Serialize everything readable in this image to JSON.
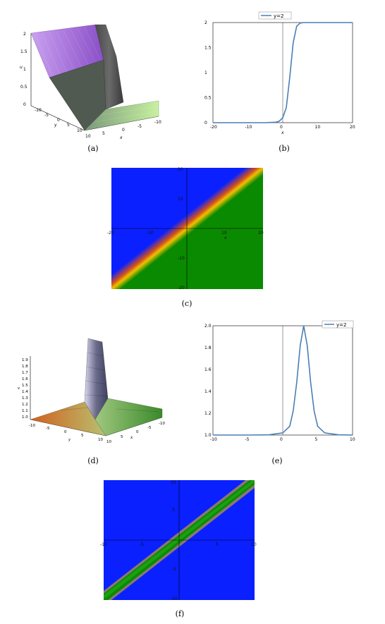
{
  "captions": {
    "a": "(a)",
    "b": "(b)",
    "c": "(c)",
    "d": "(d)",
    "e": "(e)",
    "f": "(f)"
  },
  "colors": {
    "line": "#4a7fb5",
    "blue": "#0a20ff",
    "green": "#0a8a00",
    "yellow": "#f0c000",
    "red": "#d2501e",
    "purple": "#b46fe0"
  },
  "chart_data": [
    {
      "id": "a",
      "type": "surface3d",
      "zlabel": "u",
      "xlabel": "x",
      "ylabel": "y",
      "z_ticks": [
        "0",
        "0.5",
        "1",
        "1.5",
        "2"
      ],
      "x_ticks": [
        "10",
        "5",
        "0",
        "-5",
        "-10"
      ],
      "y_ticks": [
        "-10",
        "-5",
        "0",
        "5",
        "10"
      ],
      "zlim": [
        0,
        2
      ],
      "xlim": [
        -10,
        10
      ],
      "ylim": [
        -10,
        10
      ]
    },
    {
      "id": "b",
      "type": "line",
      "legend": "y=2",
      "legend_position": "top-center",
      "xlabel": "x",
      "xlim": [
        -20,
        20
      ],
      "ylim": [
        0,
        2
      ],
      "x_ticks": [
        "-20",
        "-10",
        "0",
        "10",
        "20"
      ],
      "y_ticks": [
        "0",
        "0.5",
        "1",
        "1.5",
        "2"
      ],
      "series": [
        {
          "name": "y=2",
          "x": [
            -20,
            -10,
            -5,
            -2,
            -1,
            0,
            1,
            2,
            3,
            4,
            5,
            6,
            10,
            20
          ],
          "y": [
            0,
            0,
            0,
            0.01,
            0.03,
            0.1,
            0.3,
            0.9,
            1.6,
            1.93,
            1.99,
            2,
            2,
            2
          ]
        }
      ]
    },
    {
      "id": "c",
      "type": "heatmap",
      "xlabel": "x",
      "x_ticks": [
        "-20",
        "-10",
        "10",
        "20"
      ],
      "y_ticks": [
        "20",
        "10",
        "-10",
        "-20"
      ],
      "xlim": [
        -20,
        20
      ],
      "ylim": [
        -20,
        20
      ],
      "description_colors": [
        "blue",
        "yellow",
        "green"
      ]
    },
    {
      "id": "d",
      "type": "surface3d",
      "zlabel": "v",
      "xlabel": "x",
      "ylabel": "y",
      "z_ticks": [
        "1.0",
        "1.1",
        "1.2",
        "1.3",
        "1.4",
        "1.5",
        "1.6",
        "1.7",
        "1.8",
        "1.9"
      ],
      "x_ticks": [
        "10",
        "5",
        "0",
        "-5",
        "-10"
      ],
      "y_ticks": [
        "-10",
        "-5",
        "0",
        "5",
        "10"
      ],
      "zlim": [
        1,
        2
      ],
      "xlim": [
        -10,
        10
      ],
      "ylim": [
        -10,
        10
      ]
    },
    {
      "id": "e",
      "type": "line",
      "legend": "y=2",
      "legend_position": "top-right",
      "xlim": [
        -10,
        10
      ],
      "ylim": [
        1,
        2
      ],
      "x_ticks": [
        "-10",
        "-5",
        "0",
        "5",
        "10"
      ],
      "y_ticks": [
        "1.0",
        "1.2",
        "1.4",
        "1.6",
        "1.8",
        "2.0"
      ],
      "series": [
        {
          "name": "y=2",
          "x": [
            -10,
            -5,
            -2,
            0,
            1,
            1.5,
            2,
            2.5,
            3,
            3.5,
            4,
            4.5,
            5,
            6,
            8,
            10
          ],
          "y": [
            1,
            1,
            1.002,
            1.02,
            1.08,
            1.22,
            1.48,
            1.82,
            2.0,
            1.82,
            1.48,
            1.22,
            1.08,
            1.02,
            1.002,
            1
          ]
        }
      ]
    },
    {
      "id": "f",
      "type": "heatmap",
      "x_ticks": [
        "-10",
        "-5",
        "5",
        "10"
      ],
      "y_ticks": [
        "10",
        "5",
        "-5",
        "-10"
      ],
      "xlim": [
        -10,
        10
      ],
      "ylim": [
        -10,
        10
      ],
      "description_colors": [
        "blue",
        "yellow",
        "green"
      ]
    }
  ]
}
